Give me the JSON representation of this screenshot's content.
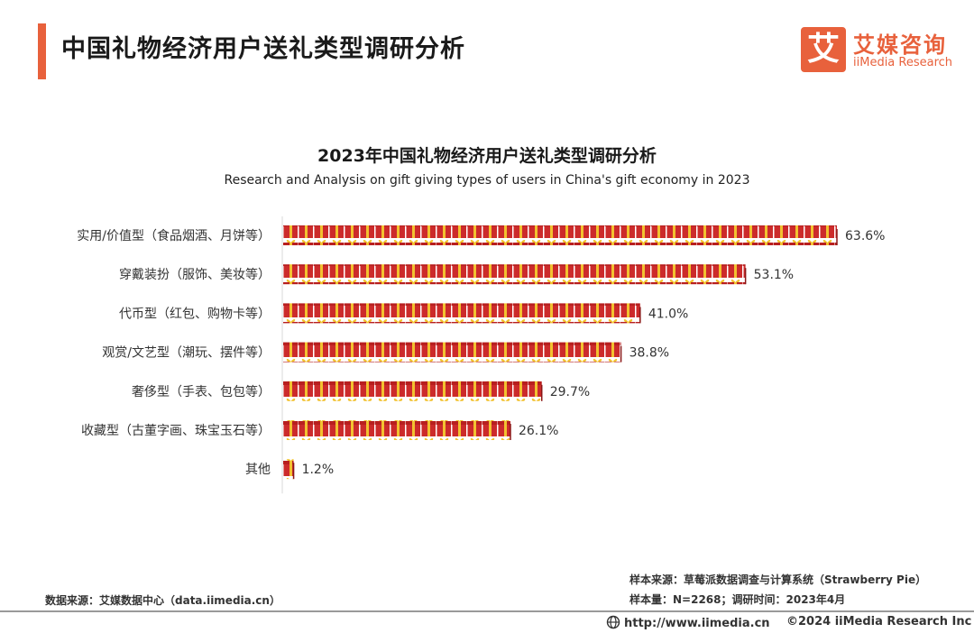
{
  "header": {
    "title": "中国礼物经济用户送礼类型调研分析",
    "accent_color": "#e8613c"
  },
  "logo": {
    "mark": "艾",
    "name_cn": "艾媒咨询",
    "name_en": "iiMedia Research",
    "color": "#e8613c"
  },
  "chart_data": {
    "type": "bar",
    "orientation": "horizontal",
    "title": "2023年中国礼物经济用户送礼类型调研分析",
    "subtitle": "Research and Analysis on gift giving types of users in China's gift economy in 2023",
    "categories": [
      "实用/价值型（食品烟酒、月饼等）",
      "穿戴装扮（服饰、美妆等）",
      "代币型（红包、购物卡等）",
      "观赏/文艺型（潮玩、摆件等）",
      "奢侈型（手表、包包等）",
      "收藏型（古董字画、珠宝玉石等）",
      "其他"
    ],
    "values": [
      63.6,
      53.1,
      41.0,
      38.8,
      29.7,
      26.1,
      1.2
    ],
    "value_labels": [
      "63.6%",
      "53.1%",
      "41.0%",
      "38.8%",
      "29.7%",
      "26.1%",
      "1.2%"
    ],
    "unit": "%",
    "xlim": [
      0,
      63.6
    ],
    "bar_style": "gift-box pictogram",
    "bar_color": "#cc2b2b",
    "ribbon_color": "#f2c230",
    "grid": false,
    "legend": "none"
  },
  "footer": {
    "source_left": "数据来源：艾媒数据中心（data.iimedia.cn）",
    "sample_source": "样本来源：草莓派数据调查与计算系统（Strawberry Pie）",
    "sample_size": "样本量：N=2268；调研时间：2023年4月",
    "url": "http://www.iimedia.cn",
    "copyright": "©2024  iiMedia Research  Inc"
  }
}
